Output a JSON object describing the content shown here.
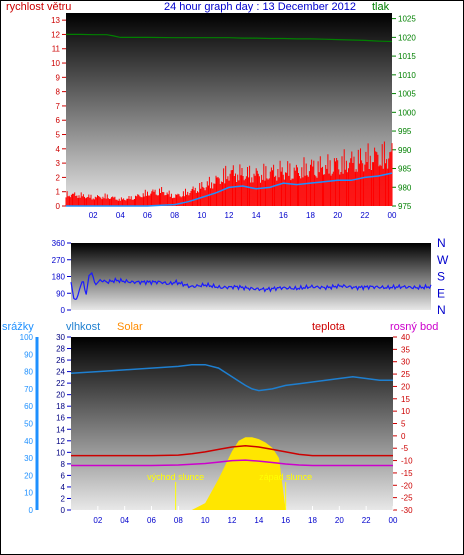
{
  "chart_data": [
    {
      "type": "line",
      "title": "24 hour graph day : 13 December 2012",
      "left_axis_label": "rychlost větru",
      "right_axis_label": "tlak",
      "x_ticks": [
        "02",
        "04",
        "06",
        "08",
        "10",
        "12",
        "14",
        "16",
        "18",
        "20",
        "22",
        "00"
      ],
      "left_ticks": [
        0,
        1,
        2,
        3,
        4,
        5,
        6,
        7,
        8,
        9,
        10,
        11,
        12,
        13
      ],
      "right_ticks": [
        975,
        980,
        985,
        990,
        995,
        1000,
        1005,
        1010,
        1015,
        1020,
        1025
      ],
      "ylim_left": [
        0,
        13.5
      ],
      "ylim_right": [
        975,
        1026.5
      ],
      "xlim": [
        0,
        24
      ],
      "colors": {
        "gust": "#ff0000",
        "avg": "#1e90ff",
        "pressure": "#008000",
        "left_axis": "#cc0000",
        "right_axis": "#008000",
        "title": "#0000cc"
      },
      "series": [
        {
          "key": "pressure",
          "x": [
            0,
            1,
            2,
            3,
            3.5,
            4,
            5,
            6,
            8,
            10,
            12,
            13,
            14,
            15,
            16,
            17,
            18,
            19,
            20,
            21,
            22,
            23,
            24
          ],
          "y": [
            1020.8,
            1020.8,
            1020.7,
            1020.7,
            1020.4,
            1020.0,
            1020.0,
            1020.0,
            1019.9,
            1019.9,
            1019.9,
            1019.8,
            1019.8,
            1019.7,
            1019.7,
            1019.6,
            1019.6,
            1019.5,
            1019.4,
            1019.3,
            1019.2,
            1019.0,
            1018.9
          ]
        },
        {
          "key": "gust",
          "x": [
            0,
            1,
            2,
            3,
            4,
            5,
            6,
            7,
            8,
            9,
            10,
            11,
            12,
            13,
            14,
            15,
            16,
            17,
            18,
            19,
            20,
            21,
            22,
            23,
            24
          ],
          "y": [
            1.1,
            1.0,
            0.8,
            0.9,
            0.6,
            0.8,
            1.2,
            1.4,
            0.9,
            1.3,
            1.8,
            2.3,
            3.1,
            3.0,
            2.9,
            3.1,
            3.3,
            3.2,
            3.6,
            3.6,
            3.9,
            4.1,
            4.4,
            4.6,
            4.7
          ]
        },
        {
          "key": "avg",
          "x": [
            0,
            2,
            4,
            6,
            7,
            8,
            9,
            10,
            11,
            12,
            13,
            14,
            15,
            16,
            17,
            18,
            19,
            20,
            21,
            22,
            23,
            24
          ],
          "y": [
            0,
            0,
            0,
            0,
            0.05,
            0.1,
            0.3,
            0.6,
            0.9,
            1.3,
            1.4,
            1.2,
            1.3,
            1.6,
            1.5,
            1.6,
            1.7,
            1.8,
            1.8,
            2.0,
            2.1,
            2.3
          ]
        }
      ]
    },
    {
      "type": "line",
      "title": "",
      "y_ticks": [
        0,
        90,
        180,
        270,
        360
      ],
      "compass_labels": [
        "N",
        "W",
        "S",
        "E",
        "N"
      ],
      "x_ticks": [],
      "ylim": [
        0,
        360
      ],
      "xlim": [
        0,
        24
      ],
      "colors": {
        "direction": "#1a1aff",
        "compass": "#0000cc"
      },
      "series": [
        {
          "key": "direction",
          "x": [
            0,
            0.2,
            0.4,
            0.6,
            0.8,
            1.0,
            1.2,
            1.4,
            1.6,
            2.0,
            2.4,
            3.0,
            4.0,
            5.0,
            6.0,
            6.5,
            7.0,
            8.0,
            9.0,
            10.0,
            11.0,
            12.0,
            13.0,
            14.0,
            15.0,
            16.0,
            17.0,
            18.0,
            19.0,
            20.0,
            21.0,
            22.0,
            23.0,
            24.0
          ],
          "y": [
            150,
            55,
            60,
            120,
            165,
            75,
            185,
            200,
            140,
            160,
            150,
            160,
            150,
            150,
            150,
            140,
            150,
            125,
            135,
            120,
            125,
            115,
            110,
            120,
            115,
            125,
            120,
            130,
            120,
            125,
            120,
            125,
            120,
            125
          ]
        }
      ]
    },
    {
      "type": "area",
      "labels": {
        "rain": "srážky",
        "humidity": "vlhkost",
        "solar": "Solar",
        "temp": "teplota",
        "dew": "rosný bod",
        "sunrise": "východ slunce",
        "sunset": "západ slunce"
      },
      "x_ticks": [
        "02",
        "04",
        "06",
        "08",
        "10",
        "12",
        "14",
        "16",
        "18",
        "20",
        "22",
        "00"
      ],
      "left_ticks_outer": [
        0,
        10,
        20,
        30,
        40,
        50,
        60,
        70,
        80,
        90,
        100
      ],
      "left_ticks_inner": [
        0,
        2,
        4,
        6,
        8,
        10,
        12,
        14,
        16,
        18,
        20,
        22,
        24,
        26,
        28,
        30
      ],
      "right_ticks": [
        -30,
        -25,
        -20,
        -15,
        -10,
        -5,
        0,
        5,
        10,
        15,
        20,
        25,
        30,
        35,
        40
      ],
      "ylim_humidity": [
        0,
        100
      ],
      "ylim_temp": [
        -30,
        40
      ],
      "sunrise_hour": 7.8,
      "sunset_hour": 16.0,
      "colors": {
        "rain_axis": "#1e90ff",
        "humidity": "#1e7fd0",
        "solar_label": "#ff8c00",
        "solar_fill": "#ffe600",
        "temp": "#cc0000",
        "dew": "#cc00cc",
        "sun_lines": "#ffff00",
        "sun_text": "#ffff00"
      },
      "series": [
        {
          "key": "humidity",
          "x": [
            0,
            2,
            4,
            6,
            8,
            9,
            10,
            11,
            12,
            13,
            13.5,
            14,
            15,
            16,
            17,
            18,
            19,
            20,
            21,
            22,
            23,
            24
          ],
          "y": [
            79,
            80,
            81,
            82,
            83,
            84,
            84,
            82,
            77,
            72,
            70,
            69,
            70,
            72,
            73,
            74,
            75,
            76,
            77,
            76,
            75,
            75
          ]
        },
        {
          "key": "temp",
          "x": [
            0,
            2,
            4,
            6,
            8,
            9,
            10,
            11,
            12,
            13,
            14,
            15,
            16,
            17,
            18,
            20,
            22,
            24
          ],
          "y": [
            -8.0,
            -8.0,
            -8.0,
            -8.0,
            -7.8,
            -7.2,
            -6.5,
            -5.5,
            -4.5,
            -4.0,
            -4.5,
            -5.5,
            -6.5,
            -7.5,
            -8.0,
            -8.0,
            -8.0,
            -8.0
          ]
        },
        {
          "key": "dew",
          "x": [
            0,
            2,
            4,
            6,
            8,
            10,
            11,
            12,
            13,
            14,
            15,
            16,
            17,
            18,
            20,
            22,
            24
          ],
          "y": [
            -12.0,
            -12.0,
            -12.0,
            -12.0,
            -11.8,
            -11.2,
            -10.6,
            -10.0,
            -9.8,
            -10.2,
            -10.8,
            -11.4,
            -11.8,
            -12.0,
            -12.0,
            -12.0,
            -12.0
          ]
        },
        {
          "key": "solar",
          "x": [
            7.8,
            9.0,
            10.0,
            11.0,
            12.0,
            12.5,
            13.0,
            13.5,
            14.0,
            14.5,
            15.0,
            15.5,
            16.0
          ],
          "y": [
            0,
            0,
            4,
            18,
            34,
            40,
            42,
            42,
            41,
            39,
            36,
            30,
            0
          ]
        }
      ]
    }
  ]
}
